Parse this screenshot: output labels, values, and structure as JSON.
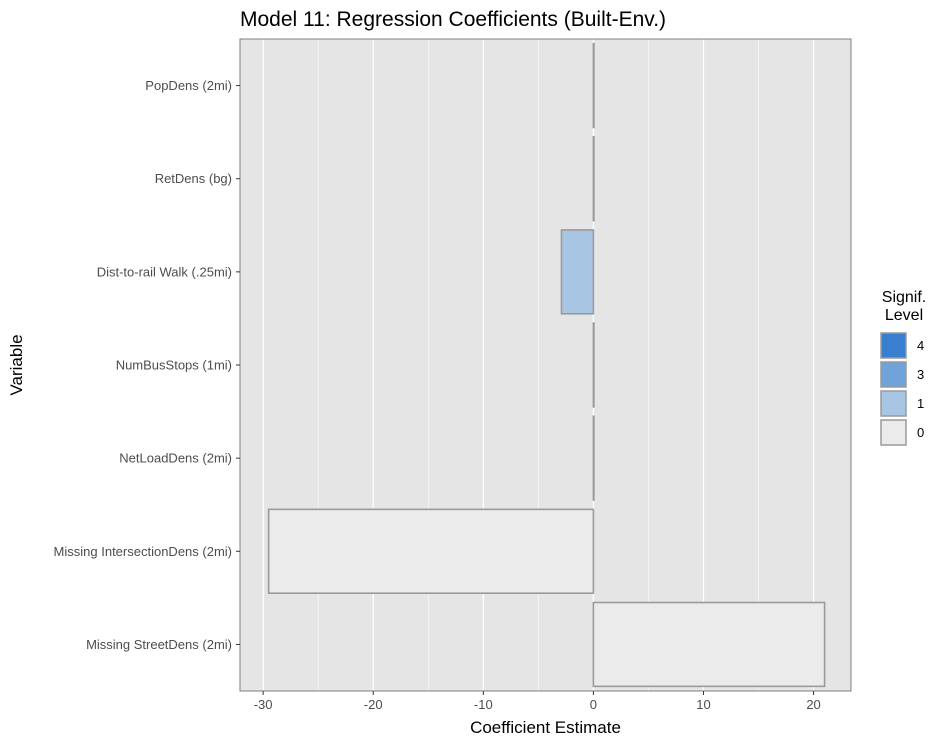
{
  "chart_data": {
    "type": "bar",
    "orientation": "horizontal",
    "title": "Model 11: Regression Coefficients (Built-Env.)",
    "xlabel": "Coefficient Estimate",
    "ylabel": "Variable",
    "xlim": [
      -32.1,
      23.4
    ],
    "x_ticks": [
      -30,
      -20,
      -10,
      0,
      10,
      20
    ],
    "x_minor_gridlines": [
      -25,
      -15,
      -5,
      5,
      15
    ],
    "grid": true,
    "categories": [
      "PopDens (2mi)",
      "RetDens (bg)",
      "Dist-to-rail Walk (.25mi)",
      "NumBusStops (1mi)",
      "NetLoadDens (2mi)",
      "Missing IntersectionDens (2mi)",
      "Missing StreetDens (2mi)"
    ],
    "values": [
      0.02,
      0.02,
      -2.9,
      0.02,
      0.02,
      -29.5,
      21.0
    ],
    "signif_levels": [
      "0",
      "0",
      "1",
      "0",
      "0",
      "0",
      "0"
    ],
    "legend": {
      "title_line1": "Signif.",
      "title_line2": "Level",
      "position": "right",
      "items": [
        {
          "label": "4",
          "color": "#3a7ed0"
        },
        {
          "label": "3",
          "color": "#6fa3d9"
        },
        {
          "label": "1",
          "color": "#a8c6e4"
        },
        {
          "label": "0",
          "color": "#ebebeb"
        }
      ]
    },
    "colors": {
      "panel_background": "#e5e5e5",
      "gridline": "#ffffff",
      "bar_outline": "#9a9a9a",
      "panel_border": "#7f7f7f"
    }
  }
}
